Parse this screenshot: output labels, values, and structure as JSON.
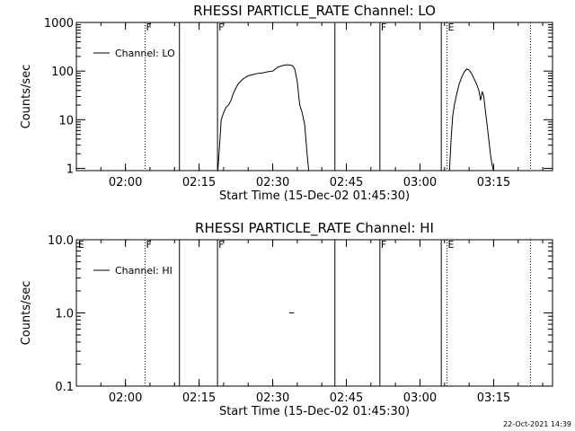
{
  "timestamp": "22-Oct-2021 14:39",
  "chart_data": [
    {
      "type": "line",
      "title": "RHESSI PARTICLE_RATE Channel: LO",
      "xlabel": "Start Time (15-Dec-02 01:45:30)",
      "ylabel": "Counts/sec",
      "yscale": "log",
      "ylim": [
        0.9,
        1000
      ],
      "xlim": [
        "01:50:00",
        "03:27:00"
      ],
      "xticks": [
        "02:00",
        "02:15",
        "02:30",
        "02:45",
        "03:00",
        "03:15"
      ],
      "yticks": [
        "1",
        "10",
        "100",
        "1000"
      ],
      "legend": {
        "label": "Channel: LO",
        "position": "top-left"
      },
      "solid_lines_x": [
        "02:11:00",
        "02:18:45",
        "02:42:40",
        "02:51:50",
        "03:04:20"
      ],
      "dotted_lines_x": [
        "02:04:00",
        "03:05:30",
        "03:22:30"
      ],
      "flags": [
        {
          "text": "F",
          "x": "02:04:00"
        },
        {
          "text": "F",
          "x": "02:18:45"
        },
        {
          "text": "F",
          "x": "02:51:50"
        },
        {
          "text": "E",
          "x": "03:05:30"
        }
      ],
      "series": [
        {
          "name": "Channel: LO",
          "segments": [
            [
              [
                "02:18:50",
                0.9
              ],
              [
                "02:19:10",
                3
              ],
              [
                "02:19:30",
                10
              ],
              [
                "02:20:00",
                14
              ],
              [
                "02:20:30",
                18
              ],
              [
                "02:21:00",
                20
              ],
              [
                "02:21:30",
                25
              ],
              [
                "02:22:00",
                35
              ],
              [
                "02:22:30",
                45
              ],
              [
                "02:23:00",
                55
              ],
              [
                "02:23:30",
                62
              ],
              [
                "02:24:00",
                70
              ],
              [
                "02:25:00",
                80
              ],
              [
                "02:26:00",
                85
              ],
              [
                "02:27:00",
                90
              ],
              [
                "02:28:00",
                92
              ],
              [
                "02:29:00",
                97
              ],
              [
                "02:30:00",
                100
              ],
              [
                "02:31:00",
                120
              ],
              [
                "02:32:00",
                130
              ],
              [
                "02:33:00",
                135
              ],
              [
                "02:34:00",
                130
              ],
              [
                "02:34:30",
                110
              ],
              [
                "02:35:00",
                60
              ],
              [
                "02:35:30",
                20
              ],
              [
                "02:36:00",
                14
              ],
              [
                "02:36:30",
                8
              ],
              [
                "02:37:00",
                2
              ],
              [
                "02:37:20",
                0.9
              ]
            ],
            [
              [
                "03:06:00",
                0.9
              ],
              [
                "03:06:20",
                4
              ],
              [
                "03:06:40",
                12
              ],
              [
                "03:07:00",
                20
              ],
              [
                "03:07:30",
                35
              ],
              [
                "03:08:00",
                55
              ],
              [
                "03:08:30",
                75
              ],
              [
                "03:09:00",
                95
              ],
              [
                "03:09:30",
                110
              ],
              [
                "03:10:00",
                105
              ],
              [
                "03:10:30",
                90
              ],
              [
                "03:11:00",
                70
              ],
              [
                "03:11:30",
                55
              ],
              [
                "03:12:00",
                40
              ],
              [
                "03:12:20",
                25
              ],
              [
                "03:12:40",
                38
              ],
              [
                "03:13:00",
                30
              ],
              [
                "03:13:20",
                15
              ],
              [
                "03:13:40",
                8
              ],
              [
                "03:14:00",
                4
              ],
              [
                "03:14:20",
                2
              ],
              [
                "03:14:40",
                1.2
              ],
              [
                "03:15:00",
                0.9
              ]
            ]
          ]
        }
      ]
    },
    {
      "type": "line",
      "title": "RHESSI PARTICLE_RATE Channel: HI",
      "xlabel": "Start Time (15-Dec-02 01:45:30)",
      "ylabel": "Counts/sec",
      "yscale": "log",
      "ylim": [
        0.1,
        10
      ],
      "xlim": [
        "01:50:00",
        "03:27:00"
      ],
      "xticks": [
        "02:00",
        "02:15",
        "02:30",
        "02:45",
        "03:00",
        "03:15"
      ],
      "yticks": [
        "0.1",
        "1.0",
        "10.0"
      ],
      "legend": {
        "label": "Channel: HI",
        "position": "top-left"
      },
      "solid_lines_x": [
        "02:11:00",
        "02:18:45",
        "02:42:40",
        "02:51:50",
        "03:04:20"
      ],
      "dotted_lines_x": [
        "02:04:00",
        "03:05:30",
        "03:22:30"
      ],
      "flags": [
        {
          "text": "E",
          "x": "01:50:10"
        },
        {
          "text": "F",
          "x": "02:04:00"
        },
        {
          "text": "F",
          "x": "02:18:45"
        },
        {
          "text": "F",
          "x": "02:51:50"
        },
        {
          "text": "E",
          "x": "03:05:30"
        }
      ],
      "series": [
        {
          "name": "Channel: HI",
          "segments": [
            [
              [
                "02:33:20",
                1.0
              ],
              [
                "02:34:20",
                1.0
              ]
            ]
          ]
        }
      ]
    }
  ]
}
